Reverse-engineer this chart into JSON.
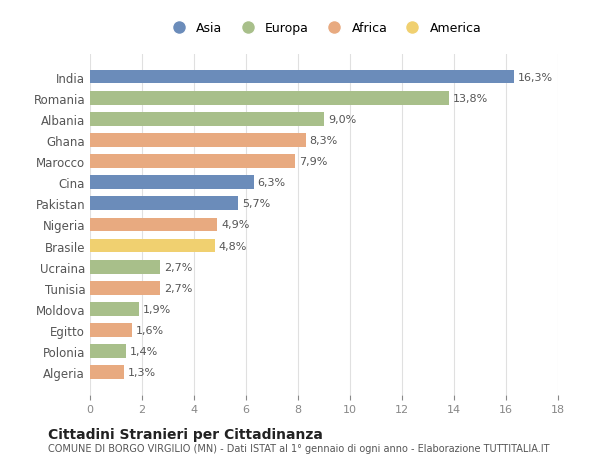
{
  "categories": [
    "India",
    "Romania",
    "Albania",
    "Ghana",
    "Marocco",
    "Cina",
    "Pakistan",
    "Nigeria",
    "Brasile",
    "Ucraina",
    "Tunisia",
    "Moldova",
    "Egitto",
    "Polonia",
    "Algeria"
  ],
  "values": [
    16.3,
    13.8,
    9.0,
    8.3,
    7.9,
    6.3,
    5.7,
    4.9,
    4.8,
    2.7,
    2.7,
    1.9,
    1.6,
    1.4,
    1.3
  ],
  "labels": [
    "16,3%",
    "13,8%",
    "9,0%",
    "8,3%",
    "7,9%",
    "6,3%",
    "5,7%",
    "4,9%",
    "4,8%",
    "2,7%",
    "2,7%",
    "1,9%",
    "1,6%",
    "1,4%",
    "1,3%"
  ],
  "continents": [
    "Asia",
    "Europa",
    "Europa",
    "Africa",
    "Africa",
    "Asia",
    "Asia",
    "Africa",
    "America",
    "Europa",
    "Africa",
    "Europa",
    "Africa",
    "Europa",
    "Africa"
  ],
  "colors": {
    "Asia": "#6b8cba",
    "Europa": "#a8bf8a",
    "Africa": "#e8aa80",
    "America": "#f0d070"
  },
  "legend_labels": [
    "Asia",
    "Europa",
    "Africa",
    "America"
  ],
  "title": "Cittadini Stranieri per Cittadinanza",
  "subtitle": "COMUNE DI BORGO VIRGILIO (MN) - Dati ISTAT al 1° gennaio di ogni anno - Elaborazione TUTTITALIA.IT",
  "xlim": [
    0,
    18
  ],
  "xticks": [
    0,
    2,
    4,
    6,
    8,
    10,
    12,
    14,
    16,
    18
  ],
  "background_color": "#ffffff",
  "grid_color": "#e0e0e0",
  "bar_height": 0.65
}
